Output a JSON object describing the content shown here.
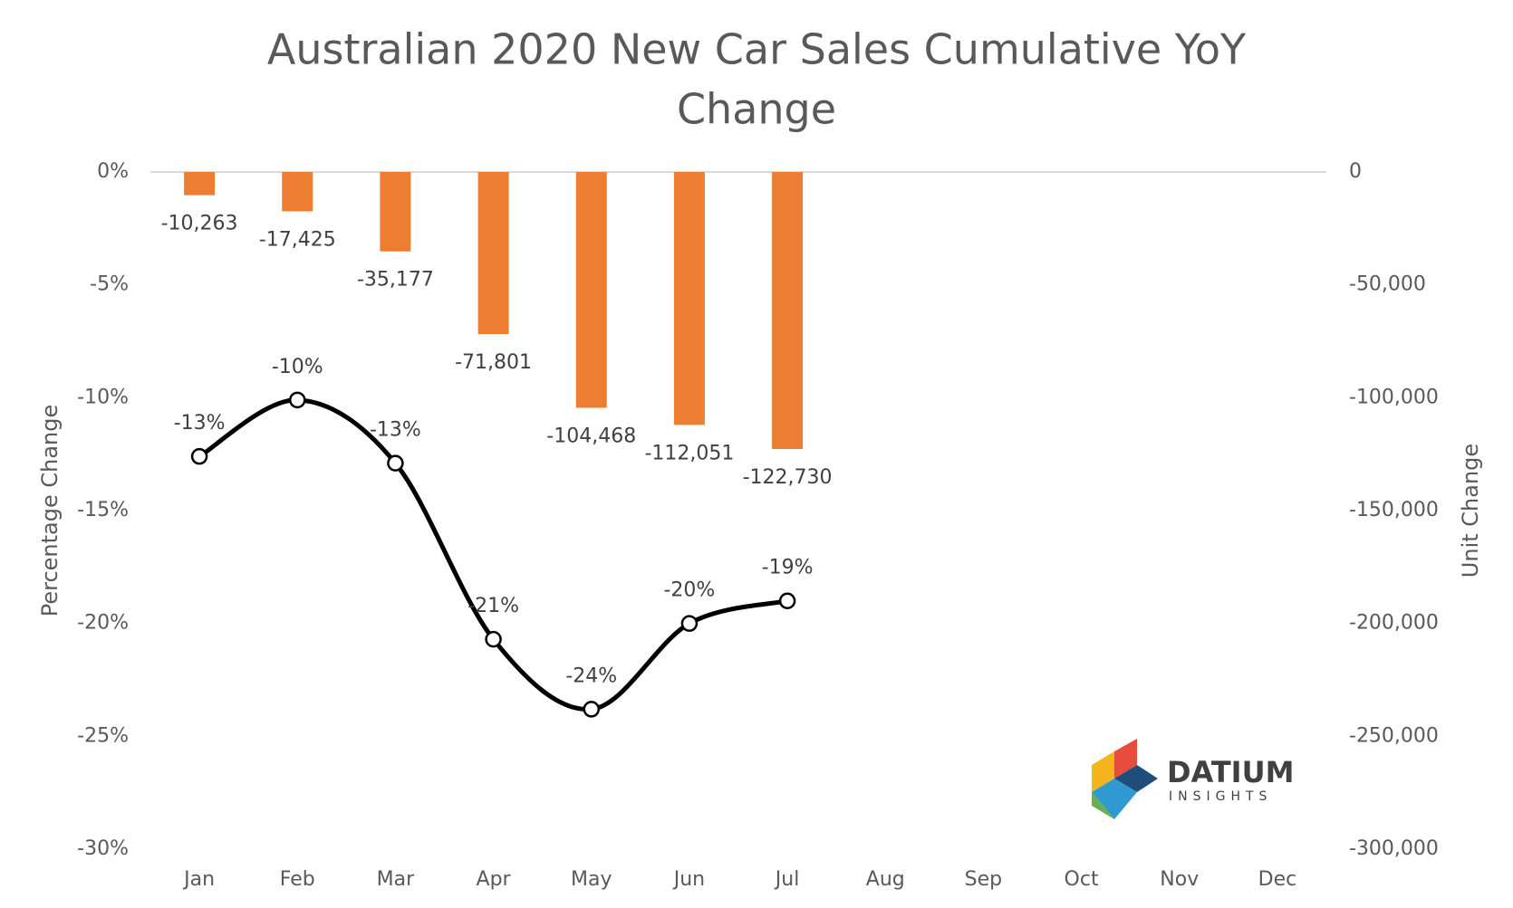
{
  "chart_data": {
    "type": "combo",
    "title": [
      "Australian 2020 New Car Sales Cumulative YoY",
      "Change"
    ],
    "y_label": "Percentage Change",
    "y2_label": "Unit Change",
    "categories": [
      "Jan",
      "Feb",
      "Mar",
      "Apr",
      "May",
      "Jun",
      "Jul",
      "Aug",
      "Sep",
      "Oct",
      "Nov",
      "Dec"
    ],
    "series": [
      {
        "name": "Unit Change",
        "type": "bar",
        "axis": "y2",
        "color": "#ed7d31",
        "values": [
          -10263,
          -17425,
          -35177,
          -71801,
          -104468,
          -112051,
          -122730,
          null,
          null,
          null,
          null,
          null
        ],
        "value_labels": [
          "-10,263",
          "-17,425",
          "-35,177",
          "-71,801",
          "-104,468",
          "-112,051",
          "-122,730",
          null,
          null,
          null,
          null,
          null
        ]
      },
      {
        "name": "Percentage Change",
        "type": "line",
        "axis": "y",
        "color": "#000000",
        "values": [
          -12.6,
          -10.1,
          -12.9,
          -20.7,
          -23.8,
          -20.0,
          -19.0,
          null,
          null,
          null,
          null,
          null
        ],
        "value_labels": [
          "-13%",
          "-10%",
          "-13%",
          "-21%",
          "-24%",
          "-20%",
          "-19%",
          null,
          null,
          null,
          null,
          null
        ]
      }
    ],
    "ylim": [
      -30,
      0
    ],
    "yticks": [
      {
        "value": 0,
        "label": "0%"
      },
      {
        "value": -5,
        "label": "-5%"
      },
      {
        "value": -10,
        "label": "-10%"
      },
      {
        "value": -15,
        "label": "-15%"
      },
      {
        "value": -20,
        "label": "-20%"
      },
      {
        "value": -25,
        "label": "-25%"
      },
      {
        "value": -30,
        "label": "-30%"
      }
    ],
    "y2lim": [
      -300000,
      0
    ],
    "y2ticks": [
      0,
      {
        "value": -50000,
        "label": "-50,000"
      },
      {
        "value": -100000,
        "label": "-100,000"
      },
      {
        "value": -150000,
        "label": "-150,000"
      },
      {
        "value": -200000,
        "label": "-200,000"
      },
      {
        "value": -250000,
        "label": "-250,000"
      },
      {
        "value": -300000,
        "label": "-300,000"
      }
    ],
    "grid": false,
    "logo": {
      "name": "DATIUM",
      "tagline": "INSIGHTS"
    }
  }
}
